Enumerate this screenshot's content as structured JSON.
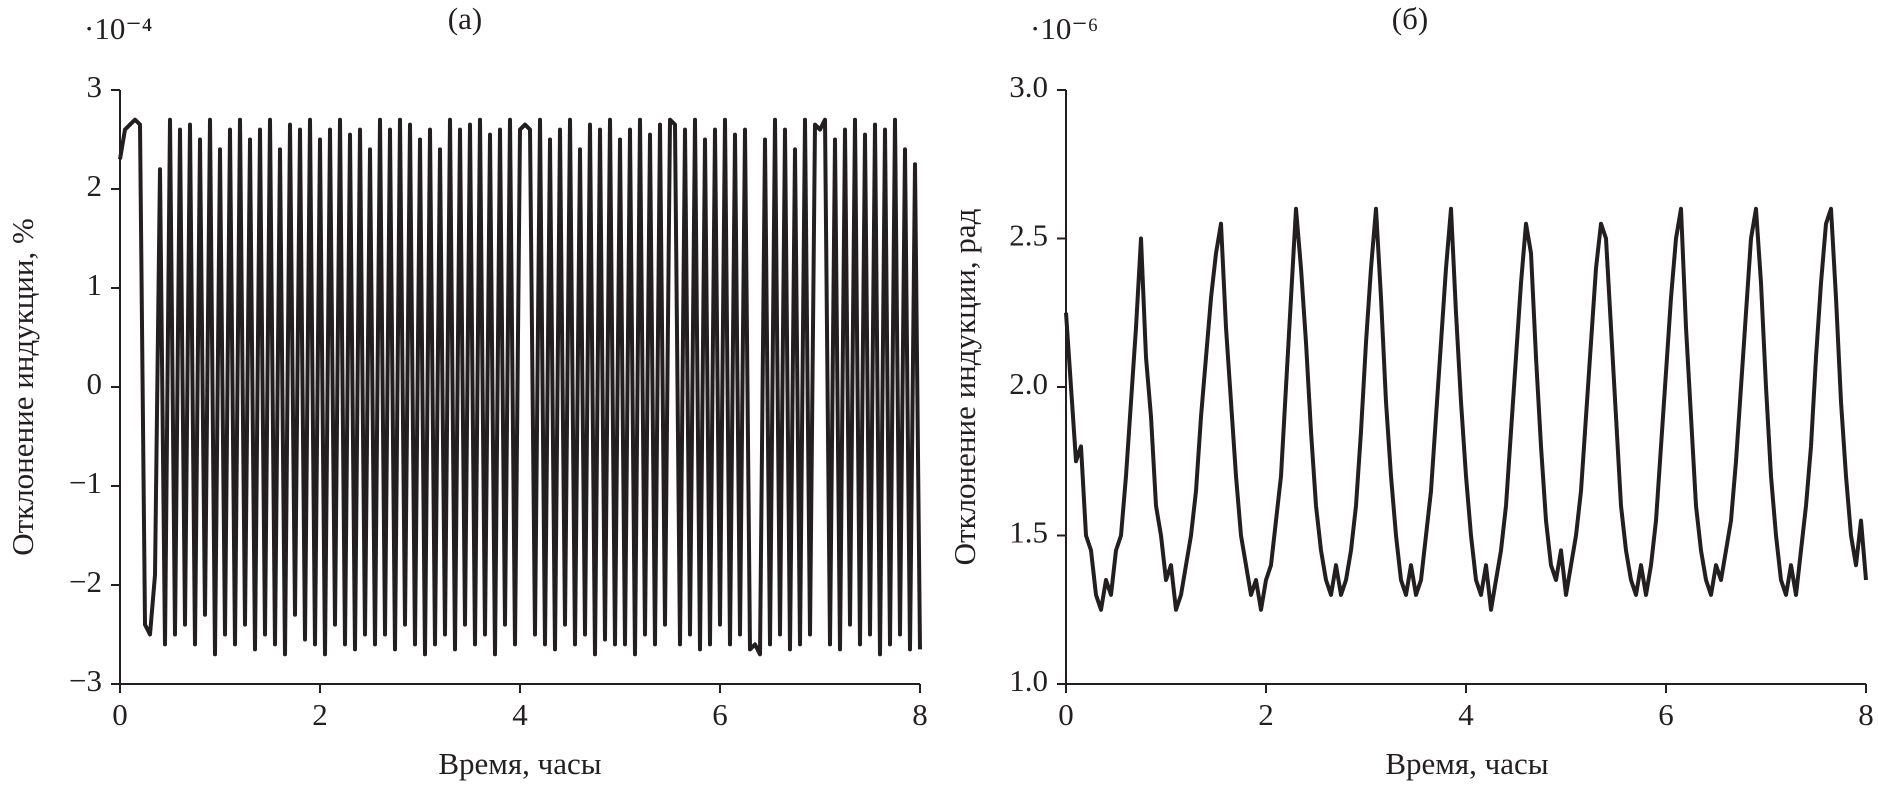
{
  "chart_data": [
    {
      "type": "line",
      "title": "(a)",
      "xlabel": "Время, часы",
      "ylabel": "Отклонение индукции, %",
      "y_scale_label": "·10⁻⁴",
      "color": "#231f20",
      "xlim": [
        0,
        8
      ],
      "xticks": [
        0,
        2,
        4,
        6,
        8
      ],
      "ylim": [
        -3,
        3
      ],
      "yticks": [
        {
          "value": -3,
          "label": "−3"
        },
        {
          "value": -2,
          "label": "−2"
        },
        {
          "value": -1,
          "label": "−1"
        },
        0,
        1,
        2,
        3
      ],
      "x": [
        0,
        0.05,
        0.1,
        0.15,
        0.2,
        0.25,
        0.3,
        0.35,
        0.4,
        0.45,
        0.5,
        0.55,
        0.6,
        0.65,
        0.7,
        0.75,
        0.8,
        0.85,
        0.9,
        0.95,
        1,
        1.05,
        1.1,
        1.15,
        1.2,
        1.25,
        1.3,
        1.35,
        1.4,
        1.45,
        1.5,
        1.55,
        1.6,
        1.65,
        1.7,
        1.75,
        1.8,
        1.85,
        1.9,
        1.95,
        2,
        2.05,
        2.1,
        2.15,
        2.2,
        2.25,
        2.3,
        2.35,
        2.4,
        2.45,
        2.5,
        2.55,
        2.6,
        2.65,
        2.7,
        2.75,
        2.8,
        2.85,
        2.9,
        2.95,
        3,
        3.05,
        3.1,
        3.15,
        3.2,
        3.25,
        3.3,
        3.35,
        3.4,
        3.45,
        3.5,
        3.55,
        3.6,
        3.65,
        3.7,
        3.75,
        3.8,
        3.85,
        3.9,
        3.95,
        4,
        4.05,
        4.1,
        4.15,
        4.2,
        4.25,
        4.3,
        4.35,
        4.4,
        4.45,
        4.5,
        4.55,
        4.6,
        4.65,
        4.7,
        4.75,
        4.8,
        4.85,
        4.9,
        4.95,
        5,
        5.05,
        5.1,
        5.15,
        5.2,
        5.25,
        5.3,
        5.35,
        5.4,
        5.45,
        5.5,
        5.55,
        5.6,
        5.65,
        5.7,
        5.75,
        5.8,
        5.85,
        5.9,
        5.95,
        6,
        6.05,
        6.1,
        6.15,
        6.2,
        6.25,
        6.3,
        6.35,
        6.4,
        6.45,
        6.5,
        6.55,
        6.6,
        6.65,
        6.7,
        6.75,
        6.8,
        6.85,
        6.9,
        6.95,
        7,
        7.05,
        7.1,
        7.15,
        7.2,
        7.25,
        7.3,
        7.35,
        7.4,
        7.45,
        7.5,
        7.55,
        7.6,
        7.65,
        7.7,
        7.75,
        7.8,
        7.85,
        7.9,
        7.95,
        8
      ],
      "values": [
        2.3,
        2.6,
        2.65,
        2.7,
        2.65,
        -2.4,
        -2.5,
        -1.9,
        2.2,
        -2.6,
        2.7,
        -2.5,
        2.6,
        -2.4,
        2.65,
        -2.6,
        2.5,
        -2.3,
        2.7,
        -2.7,
        2.4,
        -2.5,
        2.6,
        -2.6,
        2.7,
        -2.4,
        2.5,
        -2.65,
        2.6,
        -2.5,
        2.7,
        -2.6,
        2.4,
        -2.7,
        2.65,
        -2.3,
        2.6,
        -2.55,
        2.7,
        -2.6,
        2.5,
        -2.7,
        2.6,
        -2.4,
        2.7,
        -2.6,
        2.55,
        -2.65,
        2.6,
        -2.5,
        2.4,
        -2.6,
        2.7,
        -2.5,
        2.6,
        -2.65,
        2.7,
        -2.4,
        2.65,
        -2.6,
        2.5,
        -2.7,
        2.6,
        -2.6,
        2.4,
        -2.5,
        2.7,
        -2.65,
        2.6,
        -2.4,
        2.65,
        -2.6,
        2.7,
        -2.5,
        2.55,
        -2.7,
        2.6,
        -2.4,
        2.7,
        -2.6,
        2.6,
        2.65,
        2.6,
        -2.5,
        2.7,
        -2.6,
        2.5,
        -2.65,
        2.6,
        -2.4,
        2.7,
        -2.6,
        2.4,
        -2.5,
        2.65,
        -2.7,
        2.6,
        -2.55,
        2.7,
        -2.6,
        2.5,
        -2.6,
        2.6,
        -2.7,
        2.7,
        -2.5,
        2.55,
        -2.6,
        2.65,
        -2.4,
        2.7,
        2.65,
        -2.6,
        2.6,
        -2.5,
        2.7,
        -2.65,
        2.5,
        -2.6,
        2.6,
        -2.4,
        2.7,
        -2.6,
        2.55,
        -2.5,
        2.6,
        -2.65,
        -2.6,
        -2.7,
        2.5,
        -2.6,
        2.7,
        -2.5,
        2.6,
        -2.65,
        2.4,
        -2.6,
        2.7,
        -2.5,
        2.65,
        2.6,
        2.7,
        -2.6,
        2.5,
        -2.65,
        2.6,
        -2.4,
        2.7,
        -2.6,
        2.55,
        -2.5,
        2.65,
        -2.7,
        2.6,
        -2.6,
        2.7,
        -2.5,
        2.4,
        -2.65,
        2.25,
        -2.65
      ]
    },
    {
      "type": "line",
      "title": "(б)",
      "xlabel": "Время, часы",
      "ylabel": "Отклонение индукции, рад",
      "y_scale_label": "·10⁻⁶",
      "color": "#231f20",
      "xlim": [
        0,
        8
      ],
      "xticks": [
        0,
        2,
        4,
        6,
        8
      ],
      "ylim": [
        1,
        3
      ],
      "yticks": [
        {
          "value": 1,
          "label": "1.0"
        },
        1.5,
        {
          "value": 2,
          "label": "2.0"
        },
        2.5,
        {
          "value": 3,
          "label": "3.0"
        }
      ],
      "x": [
        0,
        0.05,
        0.1,
        0.15,
        0.2,
        0.25,
        0.3,
        0.35,
        0.4,
        0.45,
        0.5,
        0.55,
        0.6,
        0.65,
        0.7,
        0.75,
        0.8,
        0.85,
        0.9,
        0.95,
        1,
        1.05,
        1.1,
        1.15,
        1.2,
        1.25,
        1.3,
        1.35,
        1.4,
        1.45,
        1.5,
        1.55,
        1.6,
        1.65,
        1.7,
        1.75,
        1.8,
        1.85,
        1.9,
        1.95,
        2,
        2.05,
        2.1,
        2.15,
        2.2,
        2.25,
        2.3,
        2.35,
        2.4,
        2.45,
        2.5,
        2.55,
        2.6,
        2.65,
        2.7,
        2.75,
        2.8,
        2.85,
        2.9,
        2.95,
        3,
        3.05,
        3.1,
        3.15,
        3.2,
        3.25,
        3.3,
        3.35,
        3.4,
        3.45,
        3.5,
        3.55,
        3.6,
        3.65,
        3.7,
        3.75,
        3.8,
        3.85,
        3.9,
        3.95,
        4,
        4.05,
        4.1,
        4.15,
        4.2,
        4.25,
        4.3,
        4.35,
        4.4,
        4.45,
        4.5,
        4.55,
        4.6,
        4.65,
        4.7,
        4.75,
        4.8,
        4.85,
        4.9,
        4.95,
        5,
        5.05,
        5.1,
        5.15,
        5.2,
        5.25,
        5.3,
        5.35,
        5.4,
        5.45,
        5.5,
        5.55,
        5.6,
        5.65,
        5.7,
        5.75,
        5.8,
        5.85,
        5.9,
        5.95,
        6,
        6.05,
        6.1,
        6.15,
        6.2,
        6.25,
        6.3,
        6.35,
        6.4,
        6.45,
        6.5,
        6.55,
        6.6,
        6.65,
        6.7,
        6.75,
        6.8,
        6.85,
        6.9,
        6.95,
        7,
        7.05,
        7.1,
        7.15,
        7.2,
        7.25,
        7.3,
        7.35,
        7.4,
        7.45,
        7.5,
        7.55,
        7.6,
        7.65,
        7.7,
        7.75,
        7.8,
        7.85,
        7.9,
        7.95,
        8
      ],
      "values": [
        2.25,
        2.0,
        1.75,
        1.8,
        1.5,
        1.45,
        1.3,
        1.25,
        1.35,
        1.3,
        1.45,
        1.5,
        1.7,
        1.95,
        2.2,
        2.5,
        2.1,
        1.9,
        1.6,
        1.5,
        1.35,
        1.4,
        1.25,
        1.3,
        1.4,
        1.5,
        1.65,
        1.9,
        2.1,
        2.3,
        2.45,
        2.55,
        2.2,
        1.95,
        1.7,
        1.5,
        1.4,
        1.3,
        1.35,
        1.25,
        1.35,
        1.4,
        1.55,
        1.7,
        2.0,
        2.3,
        2.6,
        2.4,
        2.15,
        1.85,
        1.6,
        1.45,
        1.35,
        1.3,
        1.4,
        1.3,
        1.35,
        1.45,
        1.6,
        1.85,
        2.15,
        2.4,
        2.6,
        2.3,
        1.95,
        1.7,
        1.5,
        1.35,
        1.3,
        1.4,
        1.3,
        1.35,
        1.5,
        1.65,
        1.9,
        2.15,
        2.4,
        2.6,
        2.25,
        1.95,
        1.7,
        1.5,
        1.35,
        1.3,
        1.4,
        1.25,
        1.35,
        1.45,
        1.6,
        1.85,
        2.1,
        2.35,
        2.55,
        2.45,
        2.1,
        1.8,
        1.55,
        1.4,
        1.35,
        1.45,
        1.3,
        1.4,
        1.5,
        1.65,
        1.9,
        2.15,
        2.4,
        2.55,
        2.5,
        2.2,
        1.9,
        1.6,
        1.45,
        1.35,
        1.3,
        1.4,
        1.3,
        1.4,
        1.55,
        1.8,
        2.05,
        2.3,
        2.5,
        2.6,
        2.2,
        1.9,
        1.6,
        1.45,
        1.35,
        1.3,
        1.4,
        1.35,
        1.45,
        1.55,
        1.75,
        2.0,
        2.25,
        2.5,
        2.6,
        2.35,
        2.0,
        1.7,
        1.5,
        1.35,
        1.3,
        1.4,
        1.3,
        1.45,
        1.6,
        1.8,
        2.1,
        2.35,
        2.55,
        2.6,
        2.3,
        1.95,
        1.7,
        1.5,
        1.4,
        1.55,
        1.35
      ]
    }
  ]
}
